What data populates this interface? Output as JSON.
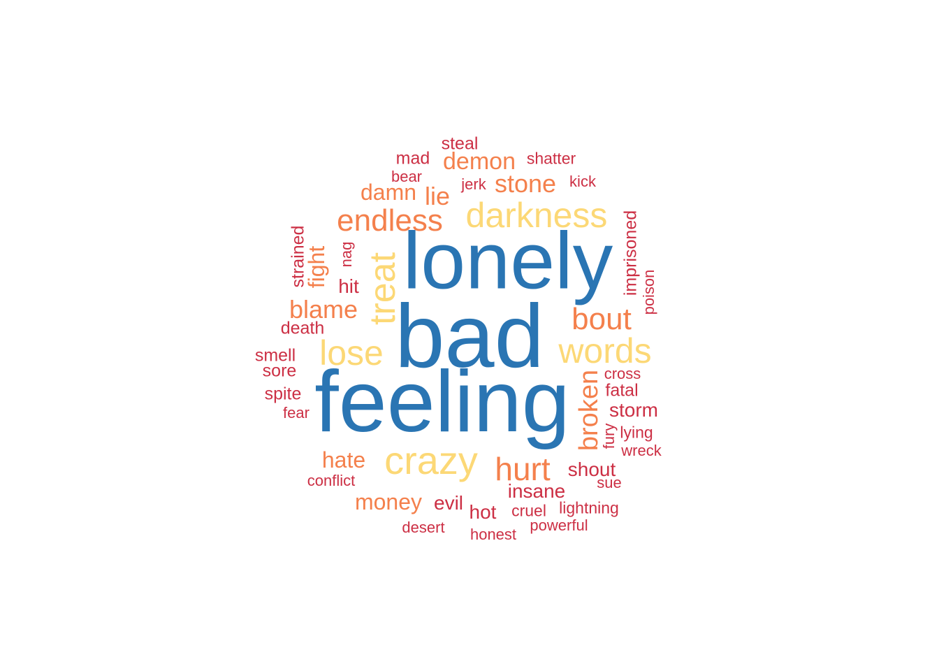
{
  "colors": {
    "blue": "#2a75b3",
    "yellow": "#fcd876",
    "orange": "#f4804c",
    "red": "#cc2f44"
  },
  "words": [
    {
      "text": "lonely",
      "color": "blue"
    },
    {
      "text": "bad",
      "color": "blue"
    },
    {
      "text": "feeling",
      "color": "blue"
    },
    {
      "text": "darkness",
      "color": "yellow"
    },
    {
      "text": "treat",
      "color": "yellow"
    },
    {
      "text": "lose",
      "color": "yellow"
    },
    {
      "text": "words",
      "color": "yellow"
    },
    {
      "text": "crazy",
      "color": "yellow"
    },
    {
      "text": "endless",
      "color": "orange"
    },
    {
      "text": "bout",
      "color": "orange"
    },
    {
      "text": "hurt",
      "color": "orange"
    },
    {
      "text": "broken",
      "color": "orange"
    },
    {
      "text": "blame",
      "color": "orange"
    },
    {
      "text": "stone",
      "color": "orange"
    },
    {
      "text": "demon",
      "color": "orange"
    },
    {
      "text": "damn",
      "color": "orange"
    },
    {
      "text": "lie",
      "color": "orange"
    },
    {
      "text": "fight",
      "color": "orange"
    },
    {
      "text": "hate",
      "color": "orange"
    },
    {
      "text": "money",
      "color": "orange"
    },
    {
      "text": "steal",
      "color": "red"
    },
    {
      "text": "mad",
      "color": "red"
    },
    {
      "text": "shatter",
      "color": "red"
    },
    {
      "text": "bear",
      "color": "red"
    },
    {
      "text": "jerk",
      "color": "red"
    },
    {
      "text": "kick",
      "color": "red"
    },
    {
      "text": "strained",
      "color": "red"
    },
    {
      "text": "nag",
      "color": "red"
    },
    {
      "text": "hit",
      "color": "red"
    },
    {
      "text": "imprisoned",
      "color": "red"
    },
    {
      "text": "poison",
      "color": "red"
    },
    {
      "text": "death",
      "color": "red"
    },
    {
      "text": "smell",
      "color": "red"
    },
    {
      "text": "sore",
      "color": "red"
    },
    {
      "text": "spite",
      "color": "red"
    },
    {
      "text": "fear",
      "color": "red"
    },
    {
      "text": "cross",
      "color": "red"
    },
    {
      "text": "fatal",
      "color": "red"
    },
    {
      "text": "storm",
      "color": "red"
    },
    {
      "text": "fury",
      "color": "red"
    },
    {
      "text": "lying",
      "color": "red"
    },
    {
      "text": "wreck",
      "color": "red"
    },
    {
      "text": "shout",
      "color": "red"
    },
    {
      "text": "sue",
      "color": "red"
    },
    {
      "text": "insane",
      "color": "red"
    },
    {
      "text": "conflict",
      "color": "red"
    },
    {
      "text": "evil",
      "color": "red"
    },
    {
      "text": "hot",
      "color": "red"
    },
    {
      "text": "cruel",
      "color": "red"
    },
    {
      "text": "lightning",
      "color": "red"
    },
    {
      "text": "desert",
      "color": "red"
    },
    {
      "text": "honest",
      "color": "red"
    },
    {
      "text": "powerful",
      "color": "red"
    }
  ]
}
